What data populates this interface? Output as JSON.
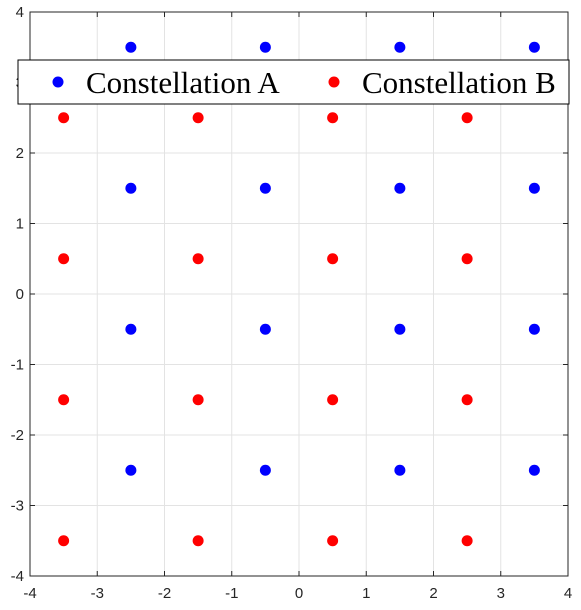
{
  "chart_data": {
    "type": "scatter",
    "title": "",
    "xlabel": "",
    "ylabel": "",
    "xlim": [
      -4,
      4
    ],
    "ylim": [
      -4,
      4
    ],
    "xticks": [
      -4,
      -3,
      -2,
      -1,
      0,
      1,
      2,
      3,
      4
    ],
    "yticks": [
      -4,
      -3,
      -2,
      -1,
      0,
      1,
      2,
      3,
      4
    ],
    "grid": true,
    "legend_position": "top",
    "series": [
      {
        "name": "Constellation A",
        "color": "#0000ff",
        "points": [
          [
            -2.5,
            3.5
          ],
          [
            -0.5,
            3.5
          ],
          [
            1.5,
            3.5
          ],
          [
            3.5,
            3.5
          ],
          [
            -2.5,
            1.5
          ],
          [
            -0.5,
            1.5
          ],
          [
            1.5,
            1.5
          ],
          [
            3.5,
            1.5
          ],
          [
            -2.5,
            -0.5
          ],
          [
            -0.5,
            -0.5
          ],
          [
            1.5,
            -0.5
          ],
          [
            3.5,
            -0.5
          ],
          [
            -2.5,
            -2.5
          ],
          [
            -0.5,
            -2.5
          ],
          [
            1.5,
            -2.5
          ],
          [
            3.5,
            -2.5
          ]
        ]
      },
      {
        "name": "Constellation B",
        "color": "#ff0000",
        "points": [
          [
            -3.5,
            2.5
          ],
          [
            -1.5,
            2.5
          ],
          [
            0.5,
            2.5
          ],
          [
            2.5,
            2.5
          ],
          [
            -3.5,
            0.5
          ],
          [
            -1.5,
            0.5
          ],
          [
            0.5,
            0.5
          ],
          [
            2.5,
            0.5
          ],
          [
            -3.5,
            -1.5
          ],
          [
            -1.5,
            -1.5
          ],
          [
            0.5,
            -1.5
          ],
          [
            2.5,
            -1.5
          ],
          [
            -3.5,
            -3.5
          ],
          [
            -1.5,
            -3.5
          ],
          [
            0.5,
            -3.5
          ],
          [
            2.5,
            -3.5
          ]
        ]
      }
    ]
  }
}
